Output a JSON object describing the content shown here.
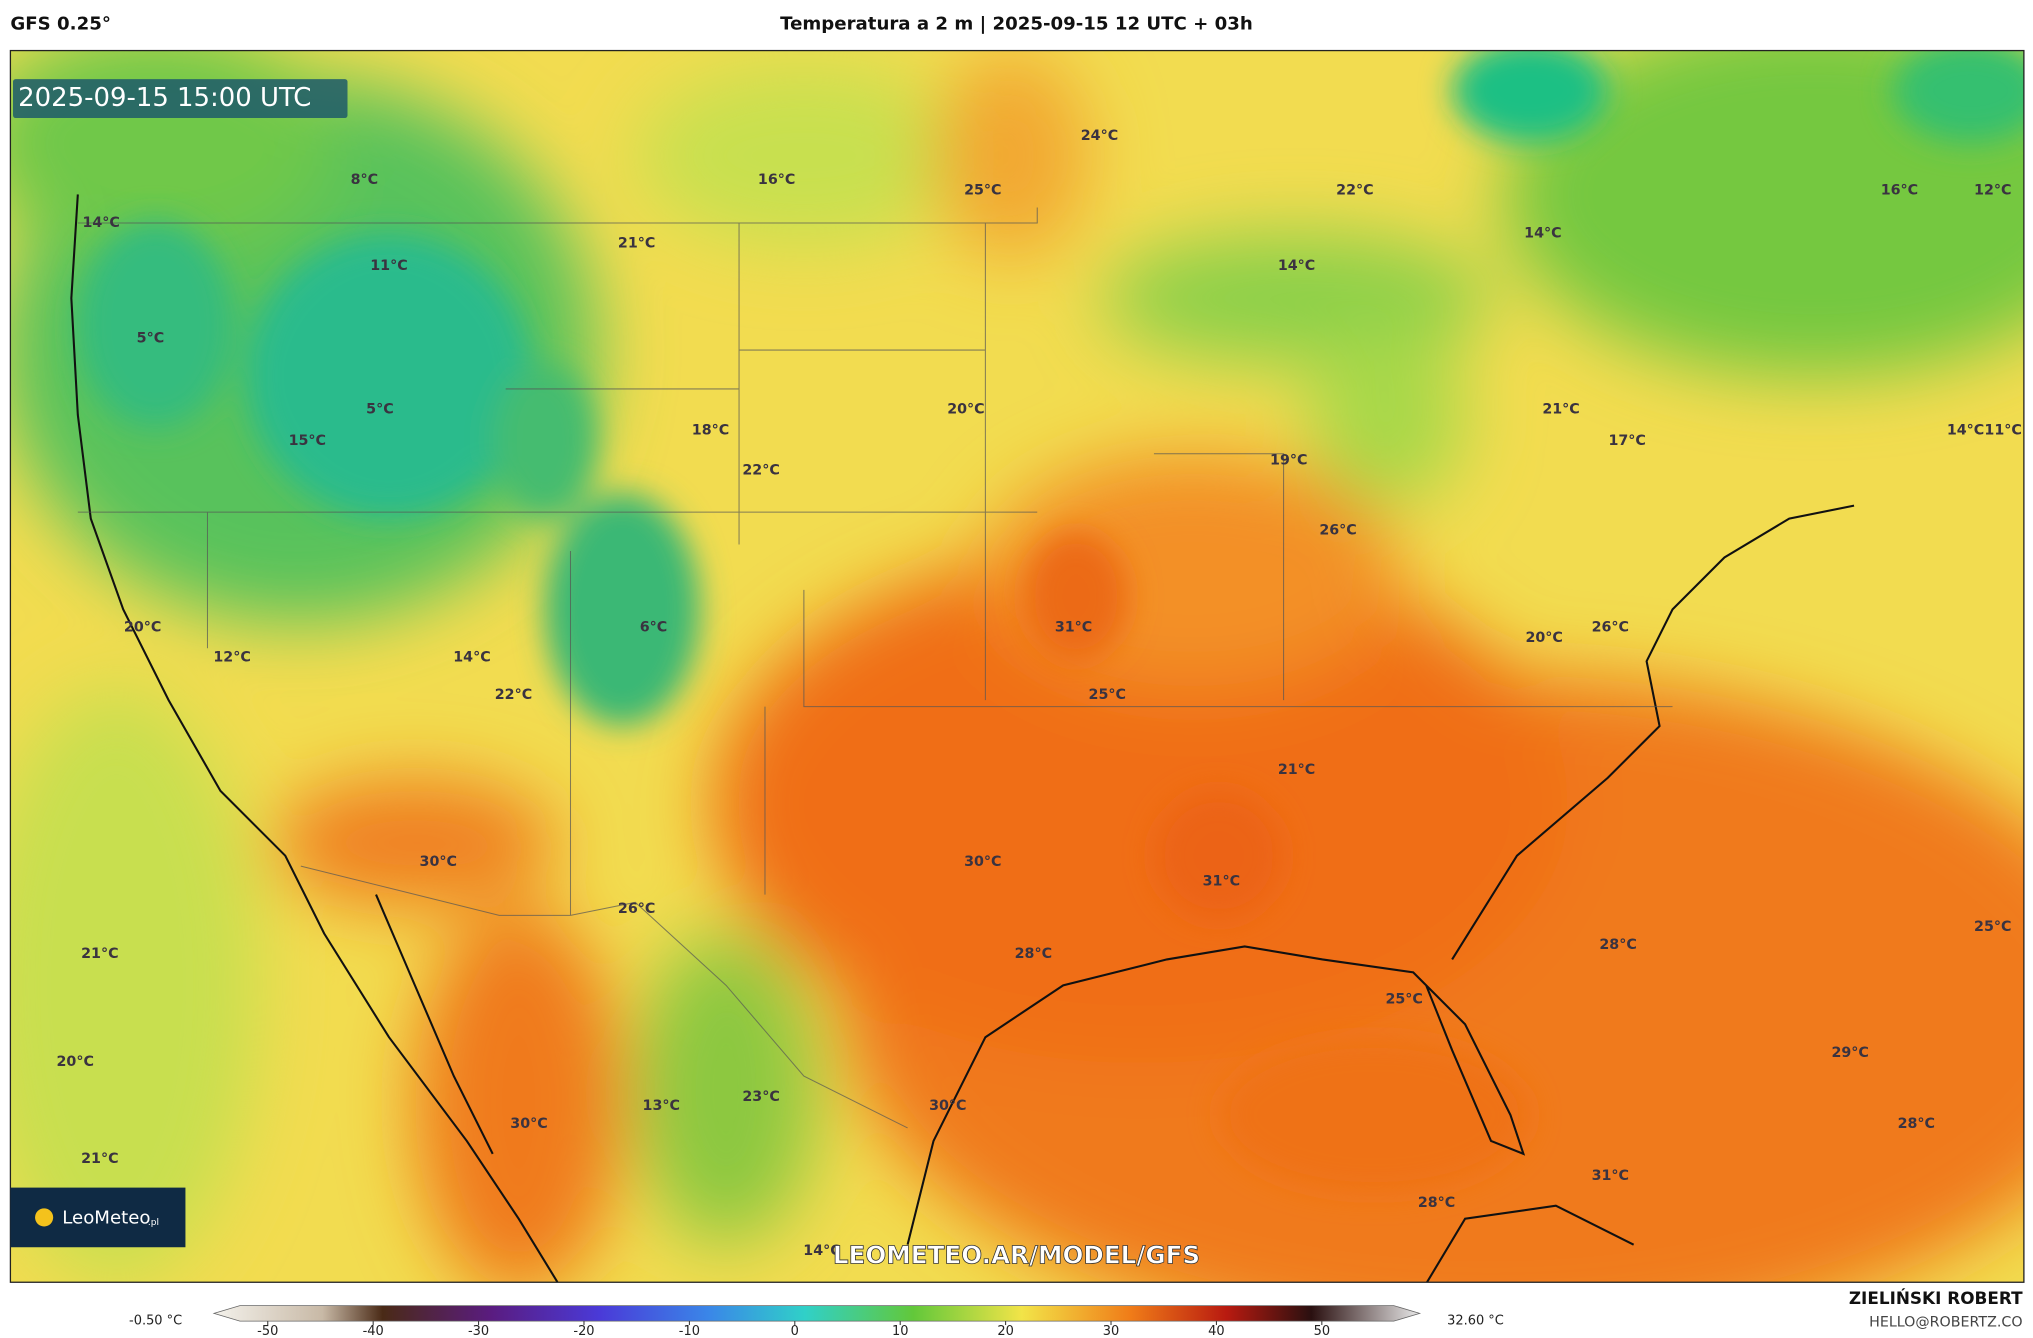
{
  "header": {
    "model": "GFS 0.25°",
    "title": "Temperatura a 2 m | 2025-09-15 12 UTC + 03h"
  },
  "timestamp": "2025-09-15 15:00 UTC",
  "logo": {
    "name": "LeoMeteo",
    "suffix": ".pl"
  },
  "watermark": "LEOMETEO.AR/MODEL/GFS",
  "labels": [
    "8°C",
    "16°C",
    "25°C",
    "24°C",
    "22°C",
    "16°C",
    "12°C",
    "14°C",
    "21°C",
    "11°C",
    "14°C",
    "14°C",
    "5°C",
    "5°C",
    "15°C",
    "18°C",
    "20°C",
    "22°C",
    "21°C",
    "17°C",
    "14°C",
    "11°C",
    "19°C",
    "26°C",
    "31°C",
    "20°C",
    "6°C",
    "12°C",
    "14°C",
    "22°C",
    "25°C",
    "20°C",
    "26°C",
    "21°C",
    "30°C",
    "30°C",
    "31°C",
    "26°C",
    "28°C",
    "21°C",
    "28°C",
    "25°C",
    "25°C",
    "20°C",
    "29°C",
    "13°C",
    "23°C",
    "30°C",
    "30°C",
    "28°C",
    "21°C",
    "31°C",
    "28°C",
    "14°C"
  ],
  "colorbar": {
    "min": "-0.50 °C",
    "max": "32.60 °C",
    "ticks": [
      -50,
      -40,
      -30,
      -20,
      -10,
      0,
      10,
      20,
      30,
      40,
      50
    ]
  },
  "author": {
    "name": "ZIELIŃSKI ROBERT",
    "email": "HELLO@ROBERTZ.CO"
  }
}
